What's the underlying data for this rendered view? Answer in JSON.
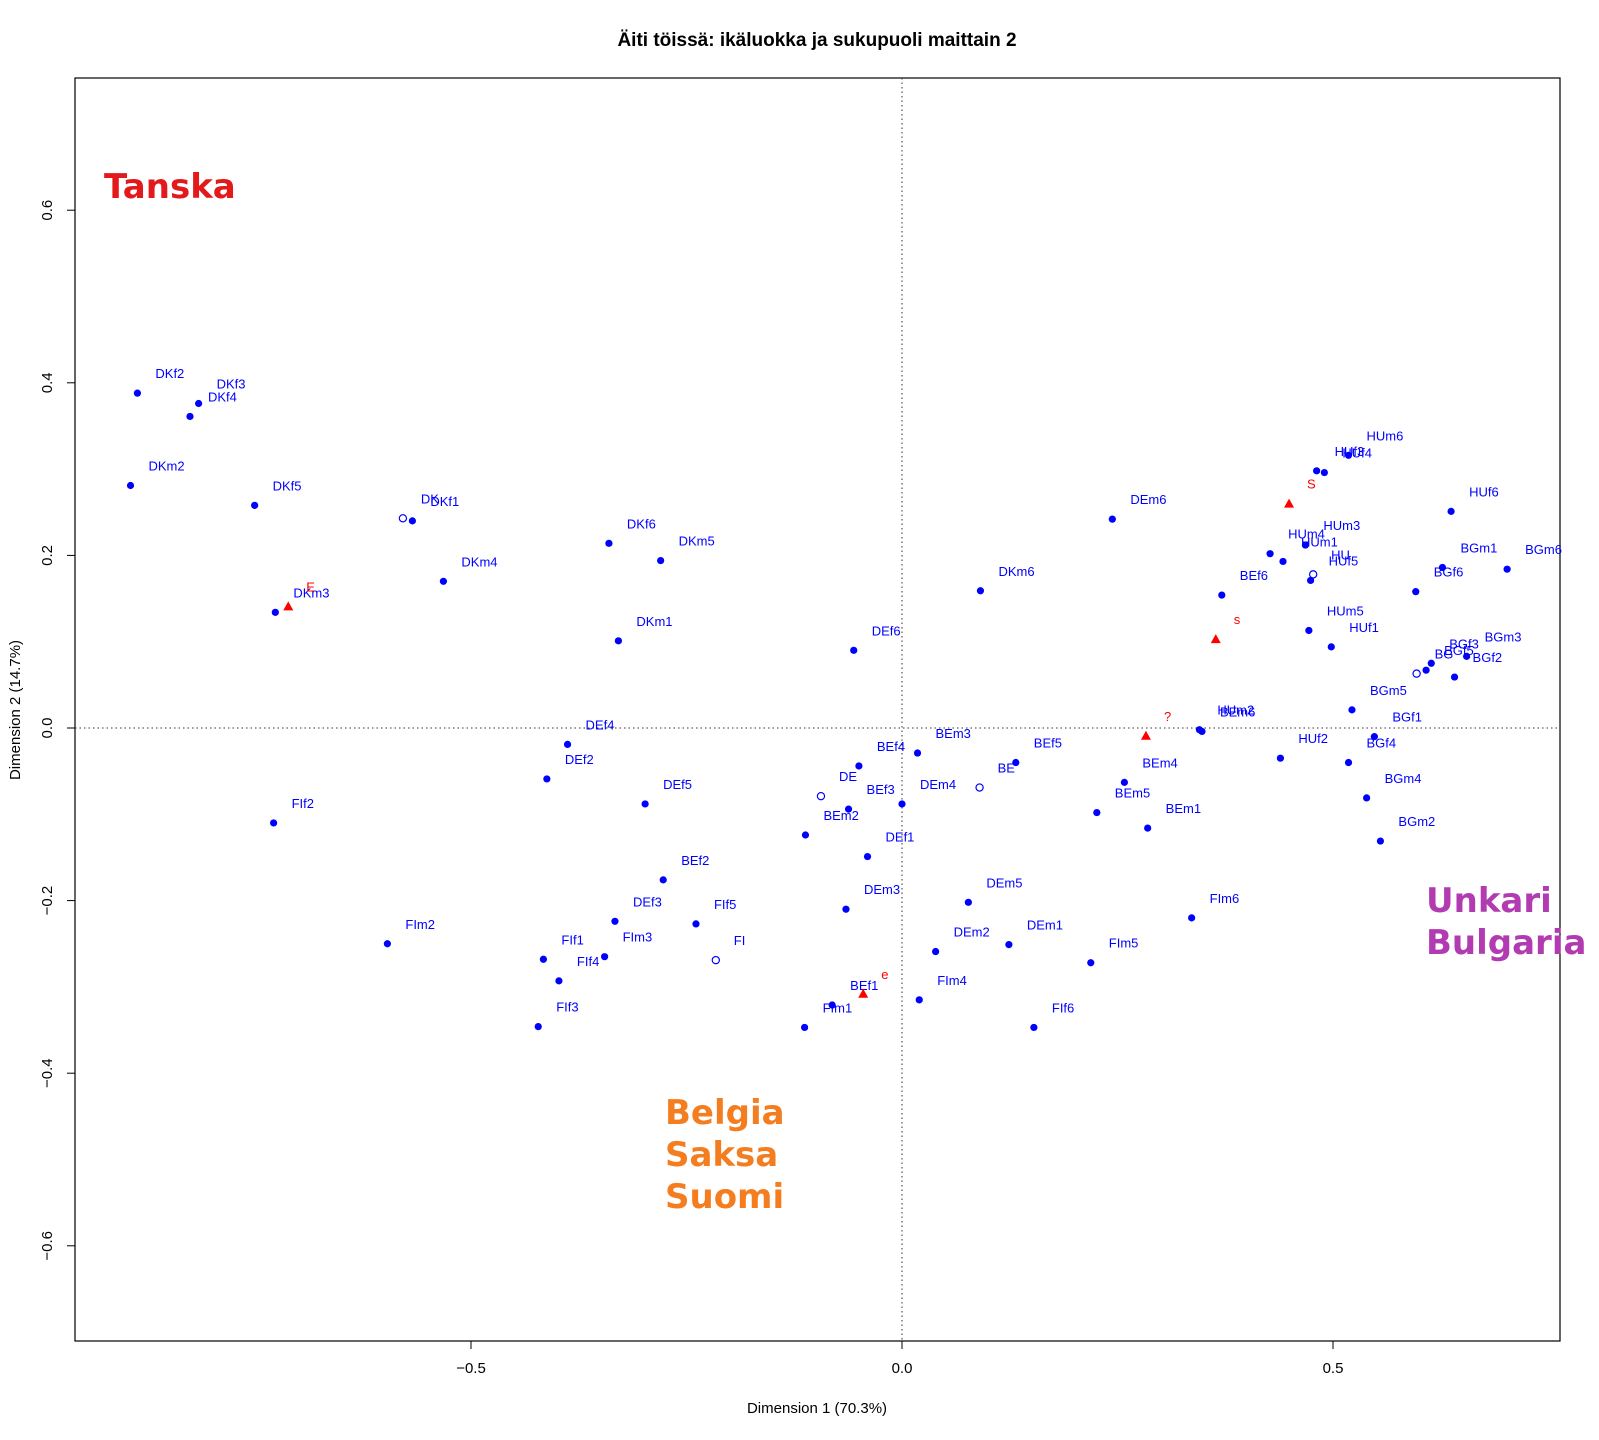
{
  "chart_data": {
    "type": "scatter",
    "title": "Äiti töissä: ikäluokka ja sukupuoli maittain 2",
    "xlabel": "Dimension 1 (70.3%)",
    "ylabel": "Dimension 2 (14.7%)",
    "xlim": [
      -0.96,
      0.76
    ],
    "ylim": [
      -0.71,
      0.75
    ],
    "x_ticks": [
      -0.5,
      0.0,
      0.5
    ],
    "x_tick_labels": [
      "−0.5",
      "0.0",
      "0.5"
    ],
    "y_ticks": [
      -0.6,
      -0.4,
      -0.2,
      0.0,
      0.2,
      0.4,
      0.6
    ],
    "y_tick_labels": [
      "−0.6",
      "−0.4",
      "−0.2",
      "0.0",
      "0.2",
      "0.4",
      "0.6"
    ],
    "reference_lines": {
      "x": 0,
      "y": 0,
      "style": "dotted"
    },
    "colors": {
      "row_points": "#0000ff",
      "supplementary": "#ff0000",
      "tanska": "#e31a1c",
      "belgia_saksa_suomi": "#f47d20",
      "unkari_bulgaria": "#b23bb2"
    },
    "series": [
      {
        "marker": "filled-circle",
        "color": "#0000ff",
        "points": [
          {
            "label": "DKf2",
            "x": -0.887,
            "y": 0.388
          },
          {
            "label": "DKf3",
            "x": -0.816,
            "y": 0.376
          },
          {
            "label": "DKf4",
            "x": -0.826,
            "y": 0.361
          },
          {
            "label": "DKm2",
            "x": -0.895,
            "y": 0.281
          },
          {
            "label": "DKf5",
            "x": -0.751,
            "y": 0.258
          },
          {
            "label": "DKf1",
            "x": -0.568,
            "y": 0.24
          },
          {
            "label": "DKm4",
            "x": -0.532,
            "y": 0.17
          },
          {
            "label": "DKm3",
            "x": -0.727,
            "y": 0.134
          },
          {
            "label": "DKf6",
            "x": -0.34,
            "y": 0.214
          },
          {
            "label": "DKm5",
            "x": -0.28,
            "y": 0.194
          },
          {
            "label": "DKm1",
            "x": -0.329,
            "y": 0.101
          },
          {
            "label": "DEf4",
            "x": -0.388,
            "y": -0.019
          },
          {
            "label": "DEf2",
            "x": -0.412,
            "y": -0.059
          },
          {
            "label": "DEf5",
            "x": -0.298,
            "y": -0.088
          },
          {
            "label": "FIf2",
            "x": -0.729,
            "y": -0.11
          },
          {
            "label": "BEf2",
            "x": -0.277,
            "y": -0.176
          },
          {
            "label": "DEf3",
            "x": -0.333,
            "y": -0.224
          },
          {
            "label": "FIf5",
            "x": -0.239,
            "y": -0.227
          },
          {
            "label": "FIm3",
            "x": -0.345,
            "y": -0.265
          },
          {
            "label": "FIf1",
            "x": -0.416,
            "y": -0.268
          },
          {
            "label": "FIf4",
            "x": -0.398,
            "y": -0.293
          },
          {
            "label": "FIm2",
            "x": -0.597,
            "y": -0.25
          },
          {
            "label": "FIf3",
            "x": -0.422,
            "y": -0.346
          },
          {
            "label": "FIm1",
            "x": -0.113,
            "y": -0.347
          },
          {
            "label": "DEf6",
            "x": -0.056,
            "y": 0.09
          },
          {
            "label": "BEf4",
            "x": -0.05,
            "y": -0.044
          },
          {
            "label": "BEf3",
            "x": -0.062,
            "y": -0.094
          },
          {
            "label": "BEm2",
            "x": -0.112,
            "y": -0.124
          },
          {
            "label": "DEf1",
            "x": -0.04,
            "y": -0.149
          },
          {
            "label": "DEm3",
            "x": -0.065,
            "y": -0.21
          },
          {
            "label": "BEf1",
            "x": -0.081,
            "y": -0.321
          },
          {
            "label": "BEm3",
            "x": 0.018,
            "y": -0.029
          },
          {
            "label": "DEm4",
            "x": 0.0,
            "y": -0.088
          },
          {
            "label": "BEf5",
            "x": 0.132,
            "y": -0.04
          },
          {
            "label": "DEm5",
            "x": 0.077,
            "y": -0.202
          },
          {
            "label": "DEm2",
            "x": 0.039,
            "y": -0.259
          },
          {
            "label": "DEm1",
            "x": 0.124,
            "y": -0.251
          },
          {
            "label": "FIm4",
            "x": 0.02,
            "y": -0.315
          },
          {
            "label": "FIf6",
            "x": 0.153,
            "y": -0.347
          },
          {
            "label": "FIm5",
            "x": 0.219,
            "y": -0.272
          },
          {
            "label": "FIm6",
            "x": 0.336,
            "y": -0.22
          },
          {
            "label": "BEm4",
            "x": 0.258,
            "y": -0.063
          },
          {
            "label": "BEm5",
            "x": 0.226,
            "y": -0.098
          },
          {
            "label": "BEm1",
            "x": 0.285,
            "y": -0.116
          },
          {
            "label": "DEm6",
            "x": 0.244,
            "y": 0.242
          },
          {
            "label": "DKm6",
            "x": 0.091,
            "y": 0.159
          },
          {
            "label": "BEf6",
            "x": 0.371,
            "y": 0.154
          },
          {
            "label": "HUm2",
            "x": 0.345,
            "y": -0.002
          },
          {
            "label": "BEm6",
            "x": 0.348,
            "y": -0.004
          },
          {
            "label": "HUm6",
            "x": 0.518,
            "y": 0.316
          },
          {
            "label": "HUf3",
            "x": 0.481,
            "y": 0.298
          },
          {
            "label": "HUf4",
            "x": 0.49,
            "y": 0.296
          },
          {
            "label": "HUf6",
            "x": 0.637,
            "y": 0.251
          },
          {
            "label": "HUm4",
            "x": 0.427,
            "y": 0.202
          },
          {
            "label": "HUm1",
            "x": 0.442,
            "y": 0.193
          },
          {
            "label": "HUm3",
            "x": 0.468,
            "y": 0.212
          },
          {
            "label": "HUf5",
            "x": 0.474,
            "y": 0.171
          },
          {
            "label": "HUm5",
            "x": 0.472,
            "y": 0.113
          },
          {
            "label": "HUf1",
            "x": 0.498,
            "y": 0.094
          },
          {
            "label": "HUf2",
            "x": 0.439,
            "y": -0.035
          },
          {
            "label": "BGf6",
            "x": 0.596,
            "y": 0.158
          },
          {
            "label": "BGm1",
            "x": 0.627,
            "y": 0.186
          },
          {
            "label": "BGm6",
            "x": 0.702,
            "y": 0.184
          },
          {
            "label": "BGf3",
            "x": 0.614,
            "y": 0.075
          },
          {
            "label": "BGm3",
            "x": 0.655,
            "y": 0.083
          },
          {
            "label": "BGf5",
            "x": 0.608,
            "y": 0.067
          },
          {
            "label": "BGf2",
            "x": 0.641,
            "y": 0.059
          },
          {
            "label": "BGm5",
            "x": 0.522,
            "y": 0.021
          },
          {
            "label": "BGf1",
            "x": 0.548,
            "y": -0.01
          },
          {
            "label": "BGf4",
            "x": 0.518,
            "y": -0.04
          },
          {
            "label": "BGm4",
            "x": 0.539,
            "y": -0.081
          },
          {
            "label": "BGm2",
            "x": 0.555,
            "y": -0.131
          }
        ]
      },
      {
        "marker": "open-circle",
        "color": "#0000ff",
        "points": [
          {
            "label": "DK",
            "x": -0.579,
            "y": 0.243
          },
          {
            "label": "DE",
            "x": -0.094,
            "y": -0.079
          },
          {
            "label": "FI",
            "x": -0.216,
            "y": -0.269
          },
          {
            "label": "BE",
            "x": 0.09,
            "y": -0.069
          },
          {
            "label": "HU",
            "x": 0.477,
            "y": 0.178
          },
          {
            "label": "BG",
            "x": 0.597,
            "y": 0.063
          }
        ]
      },
      {
        "marker": "filled-triangle",
        "color": "#ff0000",
        "points": [
          {
            "label": "E",
            "x": -0.712,
            "y": 0.141
          },
          {
            "label": "S",
            "x": 0.449,
            "y": 0.26
          },
          {
            "label": "s",
            "x": 0.364,
            "y": 0.103
          },
          {
            "label": "?",
            "x": 0.283,
            "y": -0.009
          },
          {
            "label": "e",
            "x": -0.045,
            "y": -0.308
          }
        ]
      }
    ],
    "annotations": [
      {
        "lines": [
          "Tanska"
        ],
        "color": "#e31a1c"
      },
      {
        "lines": [
          "Belgia",
          "Saksa",
          "Suomi"
        ],
        "color": "#f47d20"
      },
      {
        "lines": [
          "Unkari",
          "Bulgaria"
        ],
        "color": "#b23bb2"
      }
    ]
  }
}
